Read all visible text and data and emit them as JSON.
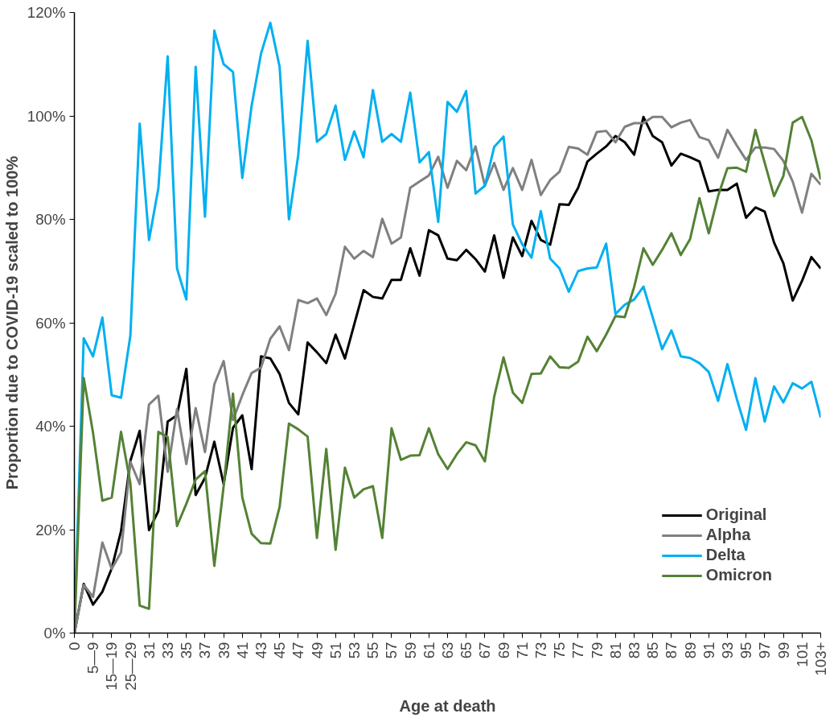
{
  "chart_data": {
    "type": "line",
    "xlabel": "Age at death",
    "ylabel": "Proportion due to COVID-19 scaled to 100%",
    "categories": [
      "0",
      null,
      "5—9",
      null,
      "15—19",
      null,
      "25—29",
      null,
      "31",
      null,
      "33",
      null,
      "35",
      null,
      "37",
      null,
      "39",
      null,
      "41",
      null,
      "43",
      null,
      "45",
      null,
      "47",
      null,
      "49",
      null,
      "51",
      null,
      "53",
      null,
      "55",
      null,
      "57",
      null,
      "59",
      null,
      "61",
      null,
      "63",
      null,
      "65",
      null,
      "67",
      null,
      "69",
      null,
      "71",
      null,
      "73",
      null,
      "75",
      null,
      "77",
      null,
      "79",
      null,
      "81",
      null,
      "83",
      null,
      "85",
      null,
      "87",
      null,
      "89",
      null,
      "91",
      null,
      "93",
      null,
      "95",
      null,
      "97",
      null,
      "99",
      null,
      "101",
      null,
      "103+"
    ],
    "ylim": [
      0,
      120
    ],
    "yticks": [
      {
        "value": 0,
        "label": "0%"
      },
      {
        "value": 20,
        "label": "20%"
      },
      {
        "value": 40,
        "label": "40%"
      },
      {
        "value": 60,
        "label": "60%"
      },
      {
        "value": 80,
        "label": "80%"
      },
      {
        "value": 100,
        "label": "100%"
      },
      {
        "value": 120,
        "label": "120%"
      }
    ],
    "grid": false,
    "legend": "bottom right",
    "marker": "none",
    "line_style": "solid",
    "series": [
      {
        "name": "Original",
        "color": "#000000",
        "values": [
          0,
          9.5,
          5.5,
          8,
          12.5,
          19.7,
          33.3,
          39.1,
          19.9,
          23.6,
          40.9,
          42.1,
          51.1,
          26.7,
          30,
          37,
          28.8,
          39.7,
          42.1,
          31.7,
          53.5,
          53.1,
          50.1,
          44.5,
          42.3,
          56.2,
          54.3,
          52.2,
          57.7,
          53.1,
          59.7,
          66.3,
          65,
          64.7,
          68.3,
          68.3,
          74.4,
          69.1,
          77.9,
          76.9,
          72.4,
          72.1,
          74.1,
          72.3,
          69.9,
          76.9,
          68.7,
          76.5,
          72.9,
          79.7,
          76,
          75.1,
          82.9,
          82.8,
          86.1,
          91.2,
          92.7,
          94.1,
          96.1,
          94.9,
          92.5,
          99.8,
          96.1,
          94.9,
          90.4,
          92.7,
          92,
          91.2,
          85.4,
          85.7,
          85.7,
          86.9,
          80.3,
          82.3,
          81.5,
          75.5,
          71.5,
          64.3,
          68.1,
          72.7,
          70.5
        ]
      },
      {
        "name": "Alpha",
        "color": "#808080",
        "values": [
          0,
          9.3,
          7,
          17.5,
          12.4,
          15.6,
          33.1,
          28.8,
          44.2,
          45.9,
          31.2,
          43.3,
          32.7,
          43.5,
          35,
          48.1,
          52.6,
          41.2,
          46,
          50.3,
          51.3,
          56.9,
          59.3,
          54.7,
          64.4,
          63.8,
          64.7,
          61.5,
          65.6,
          74.7,
          72.4,
          73.9,
          72.7,
          80.1,
          75.3,
          76.5,
          86.1,
          87.3,
          88.5,
          92.1,
          86.1,
          91.3,
          89.5,
          94.1,
          86.5,
          90.9,
          85.7,
          89.9,
          85.7,
          91.5,
          84.7,
          87.6,
          89.2,
          94,
          93.7,
          92.5,
          96.9,
          97.1,
          94.9,
          97.9,
          98.6,
          98.6,
          99.8,
          99.8,
          97.8,
          98.7,
          99.2,
          95.9,
          95.3,
          91.9,
          97.3,
          94.3,
          91.5,
          93.9,
          93.9,
          93.6,
          91.3,
          87.3,
          81.3,
          88.8,
          86.7
        ]
      },
      {
        "name": "Delta",
        "color": "#00b0f0",
        "values": [
          1,
          57,
          53.5,
          61,
          46,
          45.5,
          57.5,
          98.5,
          76,
          86,
          111.5,
          70.5,
          64.5,
          109.5,
          80.5,
          116.5,
          110,
          108.5,
          88,
          102,
          112,
          118,
          109.5,
          80,
          92.5,
          114.5,
          95,
          96.5,
          102,
          91.5,
          97,
          92,
          105,
          95,
          96.5,
          95,
          104.5,
          91,
          93,
          79.5,
          102.7,
          100.8,
          104.8,
          85,
          86.5,
          94,
          96,
          79,
          75.2,
          72.6,
          81.6,
          72.4,
          70.5,
          66,
          70,
          70.5,
          70.7,
          75.3,
          61.7,
          63.5,
          64.5,
          67,
          61,
          54.9,
          58.5,
          53.5,
          53.2,
          52.2,
          50.5,
          44.9,
          52,
          45.3,
          39.3,
          49.3,
          40.9,
          47.7,
          44.6,
          48.3,
          47.3,
          48.6,
          41.7
        ]
      },
      {
        "name": "Omicron",
        "color": "#548235",
        "values": [
          0,
          49.3,
          38.7,
          25.6,
          26.2,
          38.9,
          29,
          5.3,
          4.7,
          38.9,
          37.9,
          20.7,
          25,
          29.7,
          31.3,
          13,
          28.4,
          46.3,
          26.2,
          19.2,
          17.4,
          17.3,
          24.4,
          40.5,
          39.4,
          38,
          18.4,
          35.6,
          16.1,
          32,
          26.2,
          27.8,
          28.4,
          18.4,
          39.6,
          33.5,
          34.3,
          34.4,
          39.6,
          34.6,
          31.7,
          34.6,
          36.9,
          36.3,
          33.2,
          45.7,
          53.3,
          46.5,
          44.5,
          50.1,
          50.2,
          53.5,
          51.4,
          51.3,
          52.5,
          57.3,
          54.5,
          57.7,
          61.3,
          61.1,
          66.9,
          74.4,
          71.2,
          74.1,
          77.3,
          73.1,
          76.2,
          84.1,
          77.3,
          84.5,
          89.9,
          90,
          89.2,
          97.3,
          90.9,
          84.5,
          88.4,
          98.7,
          99.8,
          95.3,
          87.7
        ]
      }
    ]
  }
}
